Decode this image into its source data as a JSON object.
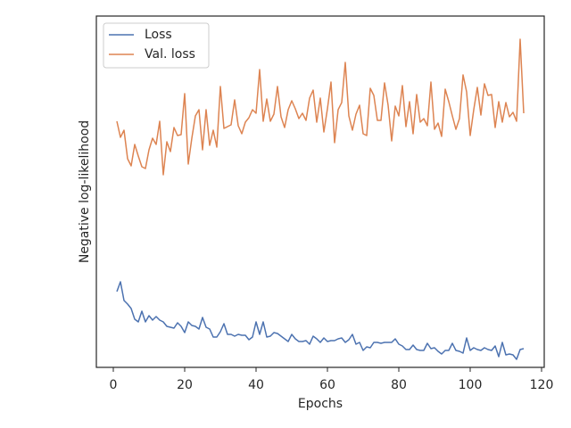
{
  "chart_data": {
    "type": "line",
    "xlabel": "Epochs",
    "ylabel": "Negative log-likelihood",
    "x": [
      1,
      2,
      3,
      4,
      5,
      6,
      7,
      8,
      9,
      10,
      11,
      12,
      13,
      14,
      15,
      16,
      17,
      18,
      19,
      20,
      21,
      22,
      23,
      24,
      25,
      26,
      27,
      28,
      29,
      30,
      31,
      32,
      33,
      34,
      35,
      36,
      37,
      38,
      39,
      40,
      41,
      42,
      43,
      44,
      45,
      46,
      47,
      48,
      49,
      50,
      51,
      52,
      53,
      54,
      55,
      56,
      57,
      58,
      59,
      60,
      61,
      62,
      63,
      64,
      65,
      66,
      67,
      68,
      69,
      70,
      71,
      72,
      73,
      74,
      75,
      76,
      77,
      78,
      79,
      80,
      81,
      82,
      83,
      84,
      85,
      86,
      87,
      88,
      89,
      90,
      91,
      92,
      93,
      94,
      95,
      96,
      97,
      98,
      99,
      100,
      101,
      102,
      103,
      104,
      105,
      106,
      107,
      108,
      109,
      110,
      111,
      112,
      113,
      114,
      115
    ],
    "series": [
      {
        "name": "Loss",
        "color": "#4c72b0",
        "values": [
          85,
          96,
          75,
          71,
          66,
          54,
          51,
          63,
          51,
          58,
          53,
          57,
          53,
          51,
          46,
          45,
          44,
          50,
          46,
          39,
          51,
          47,
          46,
          43,
          56,
          45,
          43,
          34,
          34,
          40,
          49,
          37,
          37,
          35,
          37,
          36,
          36,
          31,
          34,
          51,
          37,
          51,
          34,
          35,
          39,
          38,
          35,
          32,
          29,
          37,
          32,
          29,
          29,
          30,
          26,
          35,
          32,
          28,
          33,
          29,
          30,
          30,
          32,
          33,
          28,
          31,
          37,
          26,
          28,
          19,
          23,
          22,
          28,
          28,
          27,
          28,
          28,
          28,
          32,
          26,
          24,
          20,
          20,
          25,
          20,
          19,
          19,
          27,
          21,
          22,
          18,
          15,
          19,
          19,
          27,
          19,
          18,
          16,
          33,
          19,
          22,
          20,
          19,
          22,
          20,
          19,
          24,
          12,
          28,
          14,
          15,
          14,
          9,
          20,
          21
        ]
      },
      {
        "name": "Val. loss",
        "color": "#dd8452",
        "values": [
          276,
          258,
          266,
          234,
          226,
          250,
          237,
          225,
          223,
          244,
          257,
          250,
          276,
          216,
          253,
          242,
          269,
          260,
          261,
          307,
          228,
          257,
          282,
          289,
          244,
          289,
          249,
          266,
          247,
          315,
          268,
          270,
          272,
          300,
          271,
          262,
          275,
          280,
          289,
          285,
          334,
          276,
          301,
          276,
          284,
          315,
          281,
          269,
          289,
          299,
          290,
          279,
          285,
          277,
          302,
          311,
          275,
          302,
          264,
          290,
          320,
          252,
          289,
          297,
          342,
          282,
          266,
          284,
          294,
          262,
          260,
          313,
          305,
          277,
          277,
          319,
          294,
          254,
          293,
          282,
          316,
          270,
          298,
          262,
          306,
          275,
          279,
          271,
          320,
          267,
          274,
          259,
          312,
          298,
          282,
          267,
          279,
          328,
          309,
          260,
          289,
          314,
          283,
          318,
          305,
          306,
          269,
          298,
          275,
          297,
          281,
          286,
          276,
          368,
          285
        ]
      }
    ],
    "xlim": [
      -4.75,
      120.75
    ],
    "xticks": [
      0,
      20,
      40,
      60,
      80,
      100,
      120
    ],
    "ylim": [
      0,
      394
    ],
    "legend": "upper left"
  }
}
